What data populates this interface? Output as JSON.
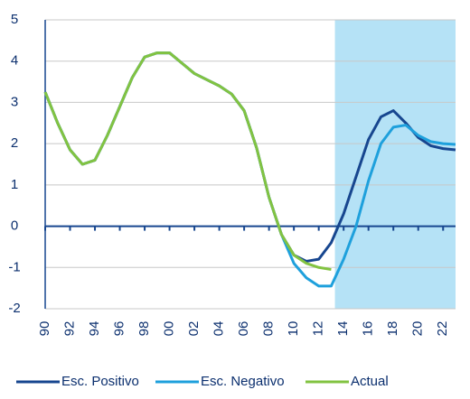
{
  "chart_data": {
    "type": "line",
    "x": [
      1990,
      1991,
      1992,
      1993,
      1994,
      1995,
      1996,
      1997,
      1998,
      1999,
      2000,
      2001,
      2002,
      2003,
      2004,
      2005,
      2006,
      2007,
      2008,
      2009,
      2010,
      2011,
      2012,
      2013,
      2014,
      2015,
      2016,
      2017,
      2018,
      2019,
      2020,
      2021,
      2022,
      2023
    ],
    "series": [
      {
        "name": "Esc. Positivo",
        "color": "#17468f",
        "values": [
          3.25,
          2.5,
          1.85,
          1.5,
          1.6,
          2.2,
          2.9,
          3.6,
          4.1,
          4.2,
          4.2,
          3.95,
          3.7,
          3.55,
          3.4,
          3.2,
          2.8,
          1.9,
          0.7,
          -0.2,
          -0.7,
          -0.85,
          -0.8,
          -0.4,
          0.3,
          1.2,
          2.1,
          2.65,
          2.8,
          2.5,
          2.15,
          1.95,
          1.88,
          1.85
        ]
      },
      {
        "name": "Esc. Negativo",
        "color": "#1ea0dc",
        "values": [
          3.25,
          2.5,
          1.85,
          1.5,
          1.6,
          2.2,
          2.9,
          3.6,
          4.1,
          4.2,
          4.2,
          3.95,
          3.7,
          3.55,
          3.4,
          3.2,
          2.8,
          1.9,
          0.7,
          -0.2,
          -0.9,
          -1.25,
          -1.45,
          -1.45,
          -0.8,
          0.0,
          1.1,
          2.0,
          2.4,
          2.45,
          2.2,
          2.05,
          2.0,
          1.98
        ]
      },
      {
        "name": "Actual",
        "color": "#82c341",
        "values": [
          3.25,
          2.5,
          1.85,
          1.5,
          1.6,
          2.2,
          2.9,
          3.6,
          4.1,
          4.2,
          4.2,
          3.95,
          3.7,
          3.55,
          3.4,
          3.2,
          2.8,
          1.9,
          0.7,
          -0.2,
          -0.7,
          -0.9,
          -1.0,
          -1.05,
          null,
          null,
          null,
          null,
          null,
          null,
          null,
          null,
          null,
          null
        ]
      }
    ],
    "xlim": [
      1990,
      2023
    ],
    "ylim": [
      -2,
      5
    ],
    "yticks": [
      -2,
      -1,
      0,
      1,
      2,
      3,
      4,
      5
    ],
    "xticks": [
      {
        "value": 1990,
        "label": "90"
      },
      {
        "value": 1992,
        "label": "92"
      },
      {
        "value": 1994,
        "label": "94"
      },
      {
        "value": 1996,
        "label": "96"
      },
      {
        "value": 1998,
        "label": "98"
      },
      {
        "value": 2000,
        "label": "00"
      },
      {
        "value": 2002,
        "label": "02"
      },
      {
        "value": 2004,
        "label": "04"
      },
      {
        "value": 2006,
        "label": "06"
      },
      {
        "value": 2008,
        "label": "08"
      },
      {
        "value": 2010,
        "label": "10"
      },
      {
        "value": 2012,
        "label": "12"
      },
      {
        "value": 2014,
        "label": "14"
      },
      {
        "value": 2016,
        "label": "16"
      },
      {
        "value": 2018,
        "label": "18"
      },
      {
        "value": 2020,
        "label": "20"
      },
      {
        "value": 2022,
        "label": "22"
      }
    ],
    "shaded_region": [
      2013.3,
      2023
    ],
    "shade_color": "#b5e2f6",
    "grid": true,
    "legend": "bottom"
  }
}
